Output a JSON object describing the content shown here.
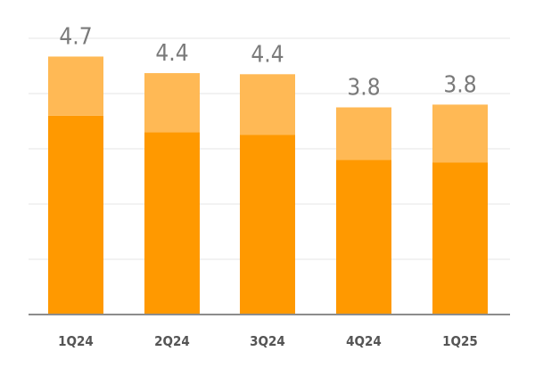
{
  "chart_data": {
    "type": "bar",
    "stacked": true,
    "categories": [
      "1Q24",
      "2Q24",
      "3Q24",
      "4Q24",
      "1Q25"
    ],
    "series": [
      {
        "values": [
          3.6,
          3.3,
          3.25,
          2.8,
          2.75
        ]
      },
      {
        "values": [
          1.07,
          1.07,
          1.1,
          0.95,
          1.05
        ]
      }
    ],
    "totals": [
      "4.7",
      "4.4",
      "4.4",
      "3.8",
      "3.8"
    ],
    "ylim": [
      0,
      5
    ],
    "gridlines": true,
    "legend": "none",
    "colors": {
      "bottom": "#FF9900",
      "top": "#FFB955",
      "grid": "#e4e4e4",
      "axis": "#8c8c8c",
      "label": "#7a7a7a"
    }
  }
}
